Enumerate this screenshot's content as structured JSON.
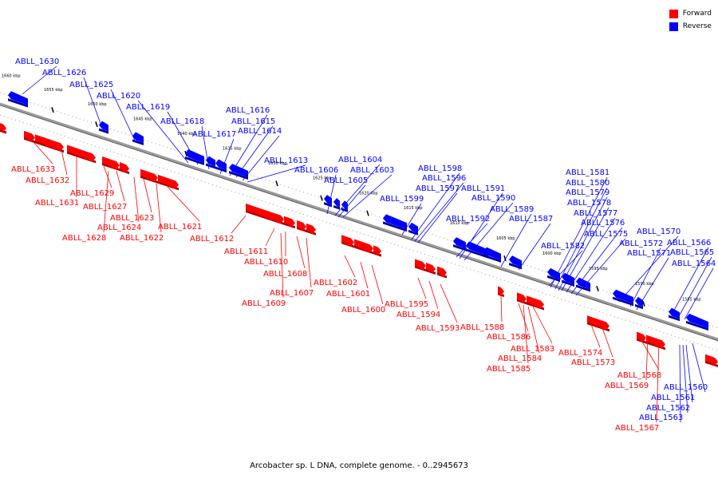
{
  "legend": {
    "forward": "Forward",
    "reverse": "Reverse"
  },
  "colors": {
    "forward": "#ff0000",
    "reverse": "#0000ff",
    "axis": "#888888"
  },
  "caption": "Arcobacter sp. L DNA, complete genome. - 0..2945673",
  "scale_labels": [
    "1660 kbp",
    "1655 kbp",
    "1650 kbp",
    "1645 kbp",
    "1640 kbp",
    "1635 kbp",
    "1630 kbp",
    "1625 kbp",
    "1620 kbp",
    "1615 kbp",
    "1610 kbp",
    "1605 kbp",
    "1600 kbp",
    "1595 kbp",
    "1590 kbp",
    "1585 kbp"
  ],
  "reverse_genes": [
    "ABLL_1630",
    "ABLL_1626",
    "ABLL_1625",
    "ABLL_1620",
    "ABLL_1619",
    "ABLL_1618",
    "ABLL_1617",
    "ABLL_1616",
    "ABLL_1615",
    "ABLL_1614",
    "ABLL_1613",
    "ABLL_1606",
    "ABLL_1604",
    "ABLL_1603",
    "ABLL_1605",
    "ABLL_1599",
    "ABLL_1598",
    "ABLL_1596",
    "ABLL_1597",
    "ABLL_1591",
    "ABLL_1590",
    "ABLL_1592",
    "ABLL_1589",
    "ABLL_1587",
    "ABLL_1581",
    "ABLL_1580",
    "ABLL_1579",
    "ABLL_1578",
    "ABLL_1577",
    "ABLL_1576",
    "ABLL_1575",
    "ABLL_1582",
    "ABLL_1570",
    "ABLL_1572",
    "ABLL_1571",
    "ABLL_1566",
    "ABLL_1565",
    "ABLL_1564",
    "ABLL_1560",
    "ABLL_1561",
    "ABLL_1562",
    "ABLL_1563"
  ],
  "forward_genes": [
    "ABLL_1633",
    "ABLL_1632",
    "ABLL_1631",
    "ABLL_1629",
    "ABLL_1627",
    "ABLL_1628",
    "ABLL_1623",
    "ABLL_1624",
    "ABLL_1622",
    "ABLL_1621",
    "ABLL_1612",
    "ABLL_1611",
    "ABLL_1610",
    "ABLL_1608",
    "ABLL_1607",
    "ABLL_1609",
    "ABLL_1602",
    "ABLL_1601",
    "ABLL_1600",
    "ABLL_1595",
    "ABLL_1594",
    "ABLL_1593",
    "ABLL_1588",
    "ABLL_1586",
    "ABLL_1583",
    "ABLL_1584",
    "ABLL_1585",
    "ABLL_1574",
    "ABLL_1573",
    "ABLL_1568",
    "ABLL_1569",
    "ABLL_1567"
  ]
}
